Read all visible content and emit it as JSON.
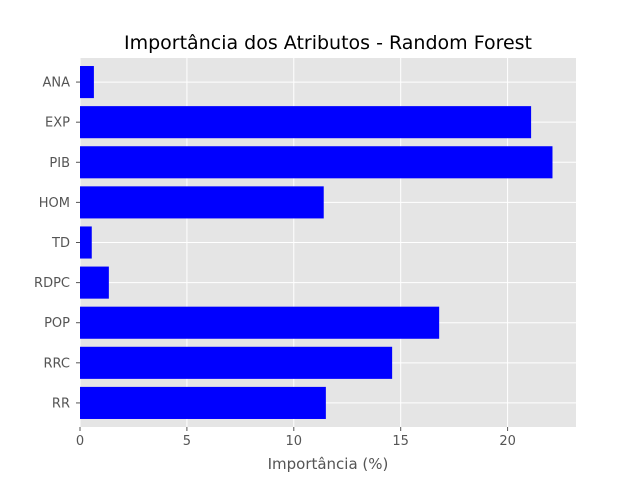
{
  "chart_data": {
    "type": "bar",
    "orientation": "horizontal",
    "title": "Importância dos Atributos - Random Forest",
    "xlabel": "Importância (%)",
    "ylabel": "",
    "categories": [
      "RR",
      "RRC",
      "POP",
      "RDPC",
      "TD",
      "HOM",
      "PIB",
      "EXP",
      "ANA"
    ],
    "values": [
      11.5,
      14.6,
      16.8,
      1.35,
      0.55,
      11.4,
      22.1,
      21.1,
      0.65
    ],
    "xlim": [
      0,
      23.2
    ],
    "xticks": [
      0,
      5,
      10,
      15,
      20
    ],
    "grid": true,
    "style": "ggplot",
    "colors": {
      "bar": "#0000ff",
      "plot_background": "#e5e5e5",
      "grid": "#ffffff",
      "figure_background": "#ffffff",
      "tick_label": "#555555"
    }
  }
}
